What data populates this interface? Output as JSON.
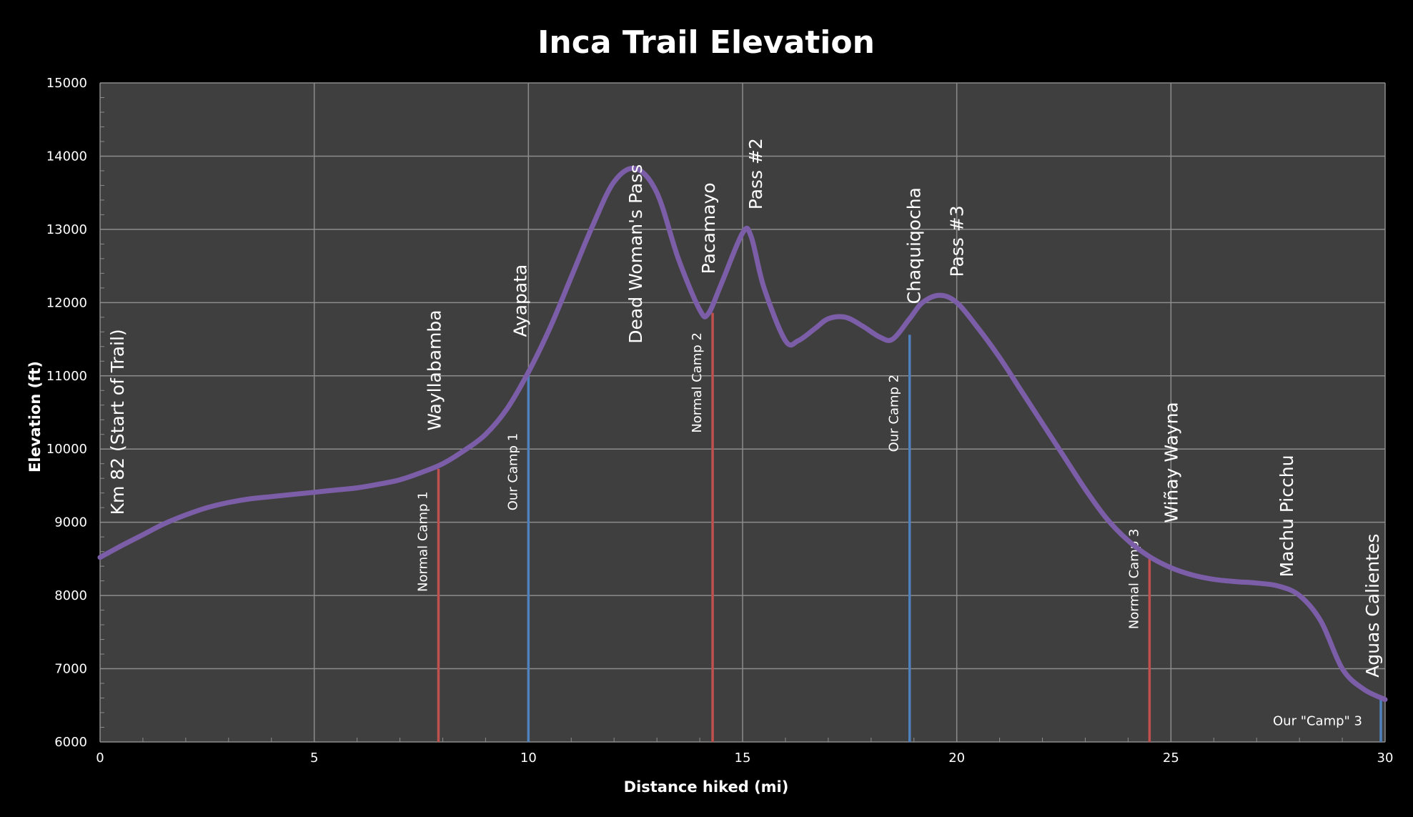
{
  "chart_data": {
    "type": "line",
    "title": "Inca Trail Elevation",
    "xlabel": "Distance hiked (mi)",
    "ylabel": "Elevation (ft)",
    "xlim": [
      0,
      30
    ],
    "ylim": [
      6000,
      15000
    ],
    "x_ticks": [
      0,
      5,
      10,
      15,
      20,
      25,
      30
    ],
    "y_ticks": [
      6000,
      7000,
      8000,
      9000,
      10000,
      11000,
      12000,
      13000,
      14000,
      15000
    ],
    "grid": true,
    "colors": {
      "background": "#000000",
      "plot_background": "#3f3f3f",
      "grid": "#8c8c8c",
      "profile_line": "#7c5ea8",
      "normal_camp": "#c0504d",
      "our_camp": "#4f81bd"
    },
    "series": [
      {
        "x": [
          0,
          0.5,
          1,
          1.5,
          2,
          2.5,
          3,
          3.5,
          4,
          4.5,
          5,
          5.5,
          6,
          6.5,
          7,
          7.5,
          8,
          8.5,
          9,
          9.5,
          10,
          10.5,
          11,
          11.5,
          12,
          12.5,
          13,
          13.5,
          14,
          14.2,
          14.5,
          15,
          15.2,
          15.5,
          16,
          16.3,
          16.7,
          17,
          17.4,
          17.8,
          18.2,
          18.5,
          18.9,
          19.2,
          19.6,
          20,
          20.5,
          21,
          21.5,
          22,
          22.5,
          23,
          23.5,
          24,
          24.5,
          25,
          25.5,
          26,
          26.5,
          27,
          27.5,
          28,
          28.5,
          29,
          29.5,
          30
        ],
        "values": [
          8520,
          8680,
          8830,
          8980,
          9100,
          9200,
          9270,
          9320,
          9350,
          9380,
          9410,
          9440,
          9470,
          9520,
          9580,
          9680,
          9800,
          9980,
          10200,
          10550,
          11050,
          11650,
          12350,
          13050,
          13650,
          13830,
          13500,
          12600,
          11900,
          11850,
          12250,
          12950,
          12900,
          12200,
          11480,
          11480,
          11650,
          11780,
          11800,
          11680,
          11530,
          11500,
          11780,
          12000,
          12100,
          12000,
          11650,
          11250,
          10800,
          10350,
          9900,
          9450,
          9050,
          8750,
          8530,
          8380,
          8280,
          8220,
          8190,
          8170,
          8130,
          8000,
          7650,
          7000,
          6720,
          6580
        ]
      }
    ],
    "landmarks": [
      {
        "label": "Km 82 (Start of Trail)",
        "x": 0.4,
        "y": 9100
      },
      {
        "label": "Wayllabamba",
        "x": 7.8,
        "y": 10250
      },
      {
        "label": "Ayapata",
        "x": 9.8,
        "y": 11530
      },
      {
        "label": "Dead Woman's Pass",
        "x": 12.5,
        "y": 11440
      },
      {
        "label": "Pacamayo",
        "x": 14.2,
        "y": 12390
      },
      {
        "label": "Pass #2",
        "x": 15.3,
        "y": 13270
      },
      {
        "label": "Chaquiqocha",
        "x": 19.0,
        "y": 11980
      },
      {
        "label": "Pass #3",
        "x": 20.0,
        "y": 12350
      },
      {
        "label": "Wiñay Wayna",
        "x": 25.0,
        "y": 8990
      },
      {
        "label": "Machu Picchu",
        "x": 27.7,
        "y": 8250
      },
      {
        "label": "Aguas Calientes",
        "x": 29.7,
        "y": 6880
      }
    ],
    "camps": [
      {
        "label": "Normal Camp 1",
        "kind": "normal",
        "x": 7.9,
        "y": 9730,
        "label_y": 8050
      },
      {
        "label": "Our Camp 1",
        "kind": "ours",
        "x": 10.0,
        "y": 11050,
        "label_y": 9160
      },
      {
        "label": "Normal Camp 2",
        "kind": "normal",
        "x": 14.3,
        "y": 11860,
        "label_y": 10220
      },
      {
        "label": "Our Camp 2",
        "kind": "ours",
        "x": 18.9,
        "y": 11560,
        "label_y": 9960
      },
      {
        "label": "Normal Camp 3",
        "kind": "normal",
        "x": 24.5,
        "y": 8530,
        "label_y": 7540
      },
      {
        "label": "Our \"Camp\" 3",
        "kind": "ours",
        "x": 29.9,
        "y": 6580,
        "label_y": 6230
      }
    ]
  }
}
